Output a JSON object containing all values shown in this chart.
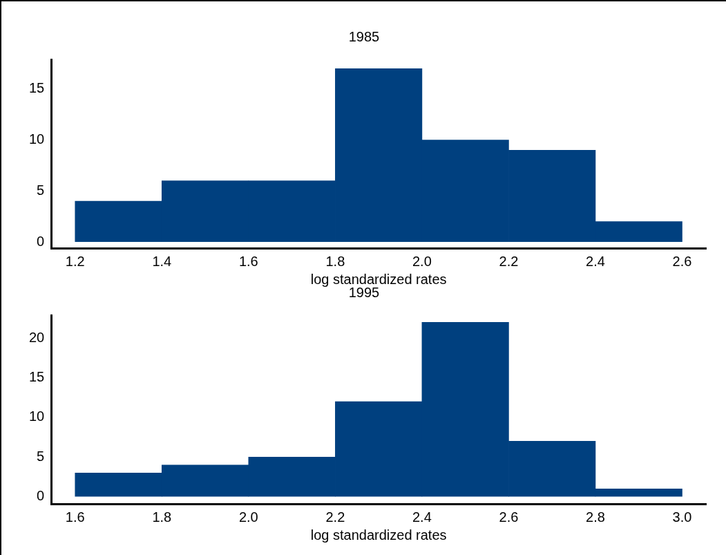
{
  "chart_data": [
    {
      "type": "histogram",
      "title": "1985",
      "xlabel": "log standardized rates",
      "bins": [
        1.2,
        1.4,
        1.6,
        1.8,
        2.0,
        2.2,
        2.4,
        2.6
      ],
      "values": [
        4,
        6,
        6,
        17,
        10,
        9,
        2
      ],
      "color": "#00407f",
      "xlim": [
        1.145,
        2.655
      ],
      "xticks": [
        {
          "value": 1.2,
          "label": "1.2"
        },
        {
          "value": 1.4,
          "label": "1.4"
        },
        {
          "value": 1.6,
          "label": "1.6"
        },
        {
          "value": 1.8,
          "label": "1.8"
        },
        {
          "value": 2.0,
          "label": "2.0"
        },
        {
          "value": 2.2,
          "label": "2.2"
        },
        {
          "value": 2.4,
          "label": "2.4"
        },
        {
          "value": 2.6,
          "label": "2.6"
        }
      ],
      "ylim": [
        -0.6,
        17.9
      ],
      "yticks": [
        0,
        5,
        10,
        15
      ],
      "grid": false,
      "legend": false
    },
    {
      "type": "histogram",
      "title": "1995",
      "xlabel": "log standardized rates",
      "bins": [
        1.6,
        1.8,
        2.0,
        2.2,
        2.4,
        2.6,
        2.8,
        3.0
      ],
      "values": [
        3,
        4,
        5,
        12,
        22,
        7,
        1
      ],
      "color": "#00407f",
      "xlim": [
        1.545,
        3.055
      ],
      "xticks": [
        {
          "value": 1.6,
          "label": "1.6"
        },
        {
          "value": 1.8,
          "label": "1.8"
        },
        {
          "value": 2.0,
          "label": "2.0"
        },
        {
          "value": 2.2,
          "label": "2.2"
        },
        {
          "value": 2.4,
          "label": "2.4"
        },
        {
          "value": 2.6,
          "label": "2.6"
        },
        {
          "value": 2.8,
          "label": "2.8"
        },
        {
          "value": 3.0,
          "label": "3.0"
        }
      ],
      "ylim": [
        -0.9,
        22.9
      ],
      "yticks": [
        0,
        5,
        10,
        15,
        20
      ],
      "grid": false,
      "legend": false
    }
  ]
}
